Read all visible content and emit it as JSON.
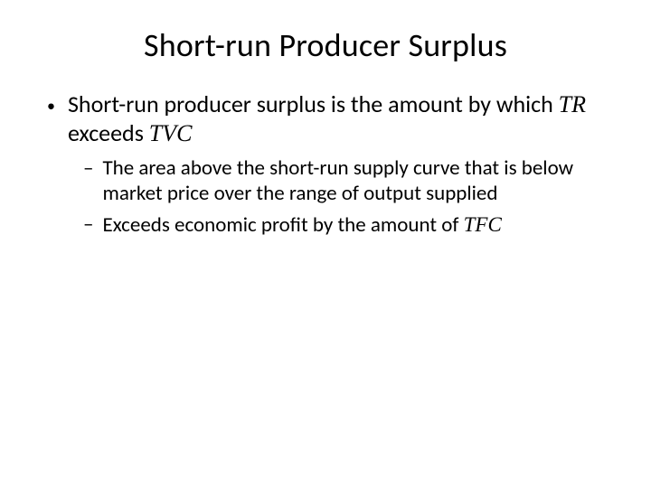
{
  "slide": {
    "title": "Short-run Producer Surplus",
    "title_fontsize": 36,
    "body_fontsize_l1": 26,
    "body_fontsize_l2": 23,
    "text_color": "#000000",
    "background_color": "#ffffff",
    "bullets": [
      {
        "level": 1,
        "marker": "•",
        "segments": [
          {
            "t": "Short-run producer surplus is the amount by which ",
            "italicSerif": false
          },
          {
            "t": "TR",
            "italicSerif": true
          },
          {
            "t": " exceeds ",
            "italicSerif": false
          },
          {
            "t": "TVC",
            "italicSerif": true
          }
        ]
      },
      {
        "level": 2,
        "marker": "–",
        "segments": [
          {
            "t": "The area above the short-run supply curve that is below market price over the range of output supplied",
            "italicSerif": false
          }
        ]
      },
      {
        "level": 2,
        "marker": "–",
        "segments": [
          {
            "t": "Exceeds economic profit by the amount of ",
            "italicSerif": false
          },
          {
            "t": "TFC",
            "italicSerif": true
          }
        ]
      }
    ]
  }
}
